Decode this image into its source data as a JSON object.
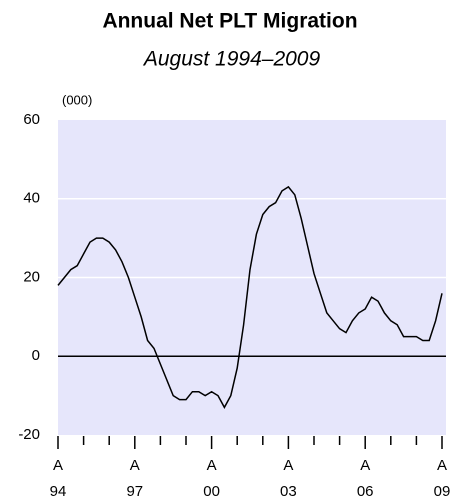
{
  "chart_data": {
    "type": "line",
    "title": "Annual Net PLT Migration",
    "subtitle": "August 1994–2009",
    "y_unit": "(000)",
    "x": [
      0,
      3,
      6,
      9,
      12,
      15,
      18,
      21,
      24,
      27,
      30,
      33,
      36,
      39,
      42,
      45,
      48,
      51,
      54,
      57,
      60,
      63,
      66,
      69,
      72,
      75,
      78,
      81,
      84,
      87,
      90,
      93,
      96,
      99,
      102,
      105,
      108,
      111,
      114,
      117,
      120,
      123,
      126,
      129,
      132,
      135,
      138,
      141,
      144,
      147,
      150,
      153,
      156,
      159,
      162,
      165,
      168,
      171,
      174,
      177,
      180
    ],
    "series": [
      {
        "color": "#000000",
        "values": [
          18,
          20,
          22,
          23,
          26,
          29,
          30,
          30,
          29,
          27,
          24,
          20,
          15,
          10,
          4,
          2,
          -2,
          -6,
          -10,
          -11,
          -11,
          -9,
          -9,
          -10,
          -9,
          -10,
          -13,
          -10,
          -3,
          8,
          22,
          31,
          36,
          38,
          39,
          42,
          43,
          41,
          35,
          28,
          21,
          16,
          11,
          9,
          7,
          6,
          9,
          11,
          12,
          15,
          14,
          11,
          9,
          8,
          5,
          5,
          5,
          4,
          4,
          9,
          16
        ]
      }
    ],
    "xlim": [
      0,
      180
    ],
    "xticks": [
      {
        "value": 0,
        "label": "94"
      },
      {
        "value": 36,
        "label": "97"
      },
      {
        "value": 72,
        "label": "00"
      },
      {
        "value": 108,
        "label": "03"
      },
      {
        "value": 144,
        "label": "06"
      },
      {
        "value": 180,
        "label": "09"
      }
    ],
    "xtick_month_labels": [
      "A",
      "A",
      "A",
      "A",
      "A",
      "A"
    ],
    "xminor_ticks": [
      12,
      24,
      48,
      60,
      84,
      96,
      120,
      132,
      156,
      168
    ],
    "ylim": [
      -20,
      60
    ],
    "yticks": [
      -20,
      0,
      20,
      40,
      60
    ],
    "grid": true,
    "background": "#e6e6fb"
  }
}
